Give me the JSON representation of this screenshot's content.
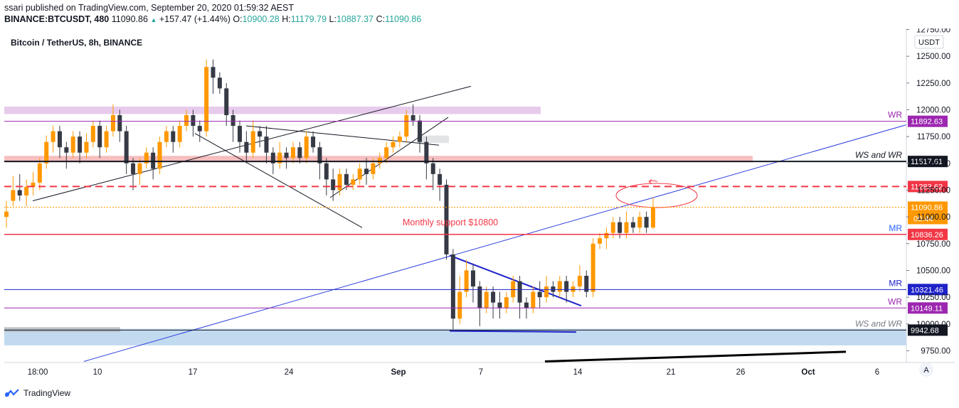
{
  "header": {
    "publisher_line": "ssari published on TradingView.com, September 20, 2020 01:59:32 AEST",
    "symbol": "BINANCE:BTCUSDT, 480",
    "last_price": "11090.86",
    "change": "+157.47 (+1.44%)",
    "o_label": "O:",
    "o": "10900.28",
    "h_label": "H:",
    "h": "11179.79",
    "l_label": "L:",
    "l": "10887.37",
    "c_label": "C:",
    "c": "11090.86"
  },
  "chart_title": "Bitcoin / TetherUS, 8h, BINANCE",
  "currency_badge": "USDT",
  "scale_button": "A",
  "footer": {
    "brand": "TradingView"
  },
  "chart_data": {
    "type": "candlestick",
    "ylim": [
      9640,
      12760
    ],
    "y_ticks": [
      "12750.00",
      "12500.00",
      "12250.00",
      "12000.00",
      "11750.00",
      "11500.00",
      "11250.00",
      "11000.00",
      "10750.00",
      "10500.00",
      "10250.00",
      "10000.00",
      "9750.00"
    ],
    "x_ticks": [
      "18:00",
      "10",
      "17",
      "24",
      "Sep",
      "7",
      "14",
      "21",
      "26",
      "Oct",
      "6"
    ],
    "candle_bearish_color": "#363a45",
    "candle_bullish_color": "#ff9800",
    "up_color": "#26a69a",
    "levels": [
      {
        "value": 11892.63,
        "label": "11892.63",
        "color": "#9c27b0",
        "tag": "WR"
      },
      {
        "value": 11517.61,
        "label": "11517.61",
        "color": "#131722",
        "tag": "WS and WR"
      },
      {
        "value": 11283.62,
        "label": "11283.62",
        "color": "#f23645",
        "tag": ""
      },
      {
        "value": 11090.86,
        "label": "11090.86",
        "color": "#ff9800",
        "tag": ""
      },
      {
        "value": 10836.26,
        "label": "10836.26",
        "color": "#f23645",
        "tag": "MR"
      },
      {
        "value": 10321.46,
        "label": "10321.46",
        "color": "#1e22c8",
        "tag": "MR"
      },
      {
        "value": 10149.11,
        "label": "10149.11",
        "color": "#9c27b0",
        "tag": "WR"
      },
      {
        "value": 9942.68,
        "label": "9942.68",
        "color": "#131722",
        "tag": "WS and WR"
      }
    ],
    "countdown": "00:44",
    "annotation": "Monthly support $10800",
    "candles": [
      [
        11000,
        11050,
        10900,
        11150
      ],
      [
        11150,
        11250,
        11100,
        11380
      ],
      [
        11250,
        11200,
        11150,
        11400
      ],
      [
        11200,
        11280,
        11100,
        11350
      ],
      [
        11280,
        11320,
        11200,
        11420
      ],
      [
        11320,
        11500,
        11250,
        11550
      ],
      [
        11500,
        11700,
        11450,
        11760
      ],
      [
        11700,
        11800,
        11600,
        11850
      ],
      [
        11800,
        11650,
        11550,
        11850
      ],
      [
        11650,
        11600,
        11450,
        11700
      ],
      [
        11600,
        11750,
        11550,
        11800
      ],
      [
        11750,
        11600,
        11500,
        11800
      ],
      [
        11600,
        11700,
        11550,
        11780
      ],
      [
        11700,
        11850,
        11650,
        11900
      ],
      [
        11850,
        11650,
        11550,
        11900
      ],
      [
        11650,
        11800,
        11600,
        11850
      ],
      [
        11800,
        11950,
        11750,
        12050
      ],
      [
        11950,
        11800,
        11700,
        12000
      ],
      [
        11800,
        11500,
        11400,
        11850
      ],
      [
        11500,
        11400,
        11250,
        11550
      ],
      [
        11400,
        11500,
        11300,
        11550
      ],
      [
        11500,
        11600,
        11450,
        11650
      ],
      [
        11600,
        11450,
        11350,
        11650
      ],
      [
        11450,
        11700,
        11400,
        11750
      ],
      [
        11700,
        11800,
        11650,
        11850
      ],
      [
        11800,
        11700,
        11600,
        11850
      ],
      [
        11700,
        11850,
        11650,
        11900
      ],
      [
        11850,
        11950,
        11800,
        12000
      ],
      [
        11950,
        11850,
        11750,
        12000
      ],
      [
        11850,
        11800,
        11700,
        11900
      ],
      [
        11800,
        12400,
        11750,
        12470
      ],
      [
        12400,
        12300,
        12150,
        12470
      ],
      [
        12300,
        12200,
        12150,
        12350
      ],
      [
        12200,
        11950,
        11850,
        12250
      ],
      [
        11950,
        11850,
        11700,
        12000
      ],
      [
        11850,
        11700,
        11600,
        11900
      ],
      [
        11700,
        11600,
        11500,
        11800
      ],
      [
        11600,
        11800,
        11550,
        11900
      ],
      [
        11800,
        11750,
        11650,
        11850
      ],
      [
        11750,
        11600,
        11500,
        11850
      ],
      [
        11600,
        11500,
        11400,
        11650
      ],
      [
        11500,
        11600,
        11450,
        11700
      ],
      [
        11600,
        11550,
        11450,
        11650
      ],
      [
        11550,
        11650,
        11500,
        11700
      ],
      [
        11650,
        11550,
        11500,
        11700
      ],
      [
        11550,
        11750,
        11500,
        11800
      ],
      [
        11750,
        11650,
        11600,
        11800
      ],
      [
        11650,
        11500,
        11350,
        11700
      ],
      [
        11500,
        11350,
        11200,
        11550
      ],
      [
        11350,
        11250,
        11150,
        11450
      ],
      [
        11250,
        11400,
        11200,
        11450
      ],
      [
        11400,
        11300,
        11250,
        11450
      ],
      [
        11300,
        11350,
        11250,
        11400
      ],
      [
        11350,
        11450,
        11300,
        11500
      ],
      [
        11450,
        11400,
        11300,
        11550
      ],
      [
        11400,
        11500,
        11350,
        11550
      ],
      [
        11500,
        11550,
        11450,
        11600
      ],
      [
        11550,
        11650,
        11500,
        11700
      ],
      [
        11650,
        11700,
        11600,
        11750
      ],
      [
        11700,
        11750,
        11650,
        11800
      ],
      [
        11750,
        11950,
        11700,
        12000
      ],
      [
        11950,
        11900,
        11850,
        12050
      ],
      [
        11900,
        11700,
        11600,
        11950
      ],
      [
        11700,
        11500,
        11350,
        11750
      ],
      [
        11500,
        11400,
        11250,
        11550
      ],
      [
        11400,
        11300,
        11150,
        11450
      ],
      [
        11300,
        10650,
        10600,
        11350
      ],
      [
        10650,
        10050,
        9950,
        10700
      ],
      [
        10050,
        10300,
        10000,
        10450
      ],
      [
        10300,
        10500,
        10250,
        10600
      ],
      [
        10500,
        10350,
        10200,
        10550
      ],
      [
        10350,
        10150,
        9980,
        10400
      ],
      [
        10150,
        10300,
        10100,
        10350
      ],
      [
        10300,
        10200,
        10050,
        10350
      ],
      [
        10200,
        10150,
        10050,
        10300
      ],
      [
        10150,
        10250,
        10100,
        10300
      ],
      [
        10250,
        10400,
        10200,
        10450
      ],
      [
        10400,
        10200,
        10050,
        10450
      ],
      [
        10200,
        10150,
        10050,
        10250
      ],
      [
        10150,
        10300,
        10100,
        10350
      ],
      [
        10300,
        10250,
        10150,
        10400
      ],
      [
        10250,
        10350,
        10200,
        10450
      ],
      [
        10350,
        10300,
        10250,
        10400
      ],
      [
        10300,
        10400,
        10250,
        10450
      ],
      [
        10400,
        10300,
        10200,
        10450
      ],
      [
        10300,
        10350,
        10250,
        10400
      ],
      [
        10350,
        10450,
        10300,
        10550
      ],
      [
        10450,
        10300,
        10250,
        10500
      ],
      [
        10300,
        10750,
        10250,
        10800
      ],
      [
        10750,
        10800,
        10700,
        10850
      ],
      [
        10800,
        10850,
        10700,
        10900
      ],
      [
        10850,
        10950,
        10800,
        11000
      ],
      [
        10950,
        10850,
        10800,
        11000
      ],
      [
        10850,
        10950,
        10800,
        11050
      ],
      [
        10950,
        10900,
        10850,
        11000
      ],
      [
        10900,
        11000,
        10850,
        11050
      ],
      [
        11000,
        10900,
        10850,
        11050
      ],
      [
        10900,
        11091,
        10887,
        11180
      ]
    ]
  }
}
